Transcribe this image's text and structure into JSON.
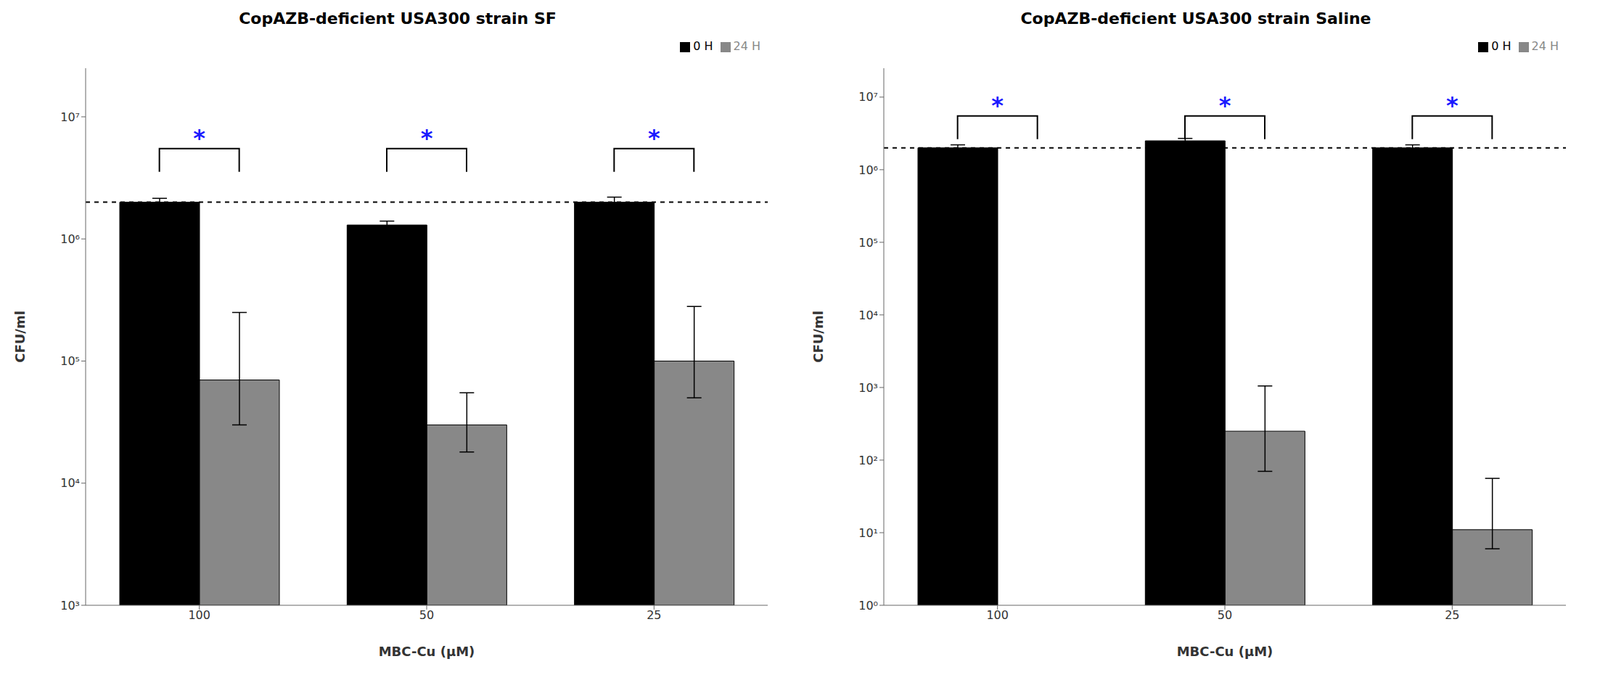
{
  "chart_data": [
    {
      "type": "bar",
      "title": "CopAZB-deficient USA300 strain SF",
      "xlabel": "MBC-Cu (μM)",
      "ylabel": "CFU/ml",
      "categories": [
        "100",
        "50",
        "25"
      ],
      "series": [
        {
          "name": "0 H",
          "color": "#000000",
          "values": [
            2000000,
            1300000,
            2000000
          ],
          "error_low": [
            150000,
            100000,
            200000
          ],
          "error_high": [
            150000,
            100000,
            200000
          ]
        },
        {
          "name": "24 H",
          "color": "#888888",
          "values": [
            70000,
            30000,
            100000
          ],
          "error_low": [
            40000,
            12000,
            50000
          ],
          "error_high": [
            180000,
            25000,
            180000
          ]
        }
      ],
      "log": "y",
      "ylim": [
        1000,
        25000000
      ],
      "yticks": [
        {
          "value": 1000,
          "label": "10³"
        },
        {
          "value": 10000,
          "label": "10⁴"
        },
        {
          "value": 100000,
          "label": "10⁵"
        },
        {
          "value": 1000000,
          "label": "10⁶"
        },
        {
          "value": 10000000,
          "label": "10⁷"
        }
      ],
      "grid": false,
      "legend": "upper right",
      "reference_line": 2000000,
      "brackets": [
        {
          "category": "100",
          "y": 5500000,
          "text": "*",
          "color": "#1a1aff"
        },
        {
          "category": "50",
          "y": 5500000,
          "text": "*",
          "color": "#1a1aff"
        },
        {
          "category": "25",
          "y": 5500000,
          "text": "*",
          "color": "#1a1aff"
        }
      ]
    },
    {
      "type": "bar",
      "title": "CopAZB-deficient USA300 strain Saline",
      "xlabel": "MBC-Cu (μM)",
      "ylabel": "CFU/ml",
      "categories": [
        "100",
        "50",
        "25"
      ],
      "series": [
        {
          "name": "0 H",
          "color": "#000000",
          "values": [
            2000000,
            2500000,
            2000000
          ],
          "error_low": [
            200000,
            200000,
            200000
          ],
          "error_high": [
            200000,
            200000,
            200000
          ]
        },
        {
          "name": "24 H",
          "color": "#888888",
          "values": [
            null,
            250,
            11
          ],
          "error_low": [
            null,
            180,
            5
          ],
          "error_high": [
            null,
            800,
            45
          ]
        }
      ],
      "log": "y",
      "ylim": [
        1,
        25000000
      ],
      "yticks": [
        {
          "value": 1,
          "label": "10⁰"
        },
        {
          "value": 10,
          "label": "10¹"
        },
        {
          "value": 100,
          "label": "10²"
        },
        {
          "value": 1000,
          "label": "10³"
        },
        {
          "value": 10000,
          "label": "10⁴"
        },
        {
          "value": 100000,
          "label": "10⁵"
        },
        {
          "value": 1000000,
          "label": "10⁶"
        },
        {
          "value": 10000000,
          "label": "10⁷"
        }
      ],
      "grid": false,
      "legend": "upper right",
      "reference_line": 2000000,
      "brackets": [
        {
          "category": "100",
          "y": 5500000,
          "text": "*",
          "color": "#1a1aff"
        },
        {
          "category": "50",
          "y": 5500000,
          "text": "*",
          "color": "#1a1aff"
        },
        {
          "category": "25",
          "y": 5500000,
          "text": "*",
          "color": "#1a1aff"
        }
      ]
    }
  ]
}
